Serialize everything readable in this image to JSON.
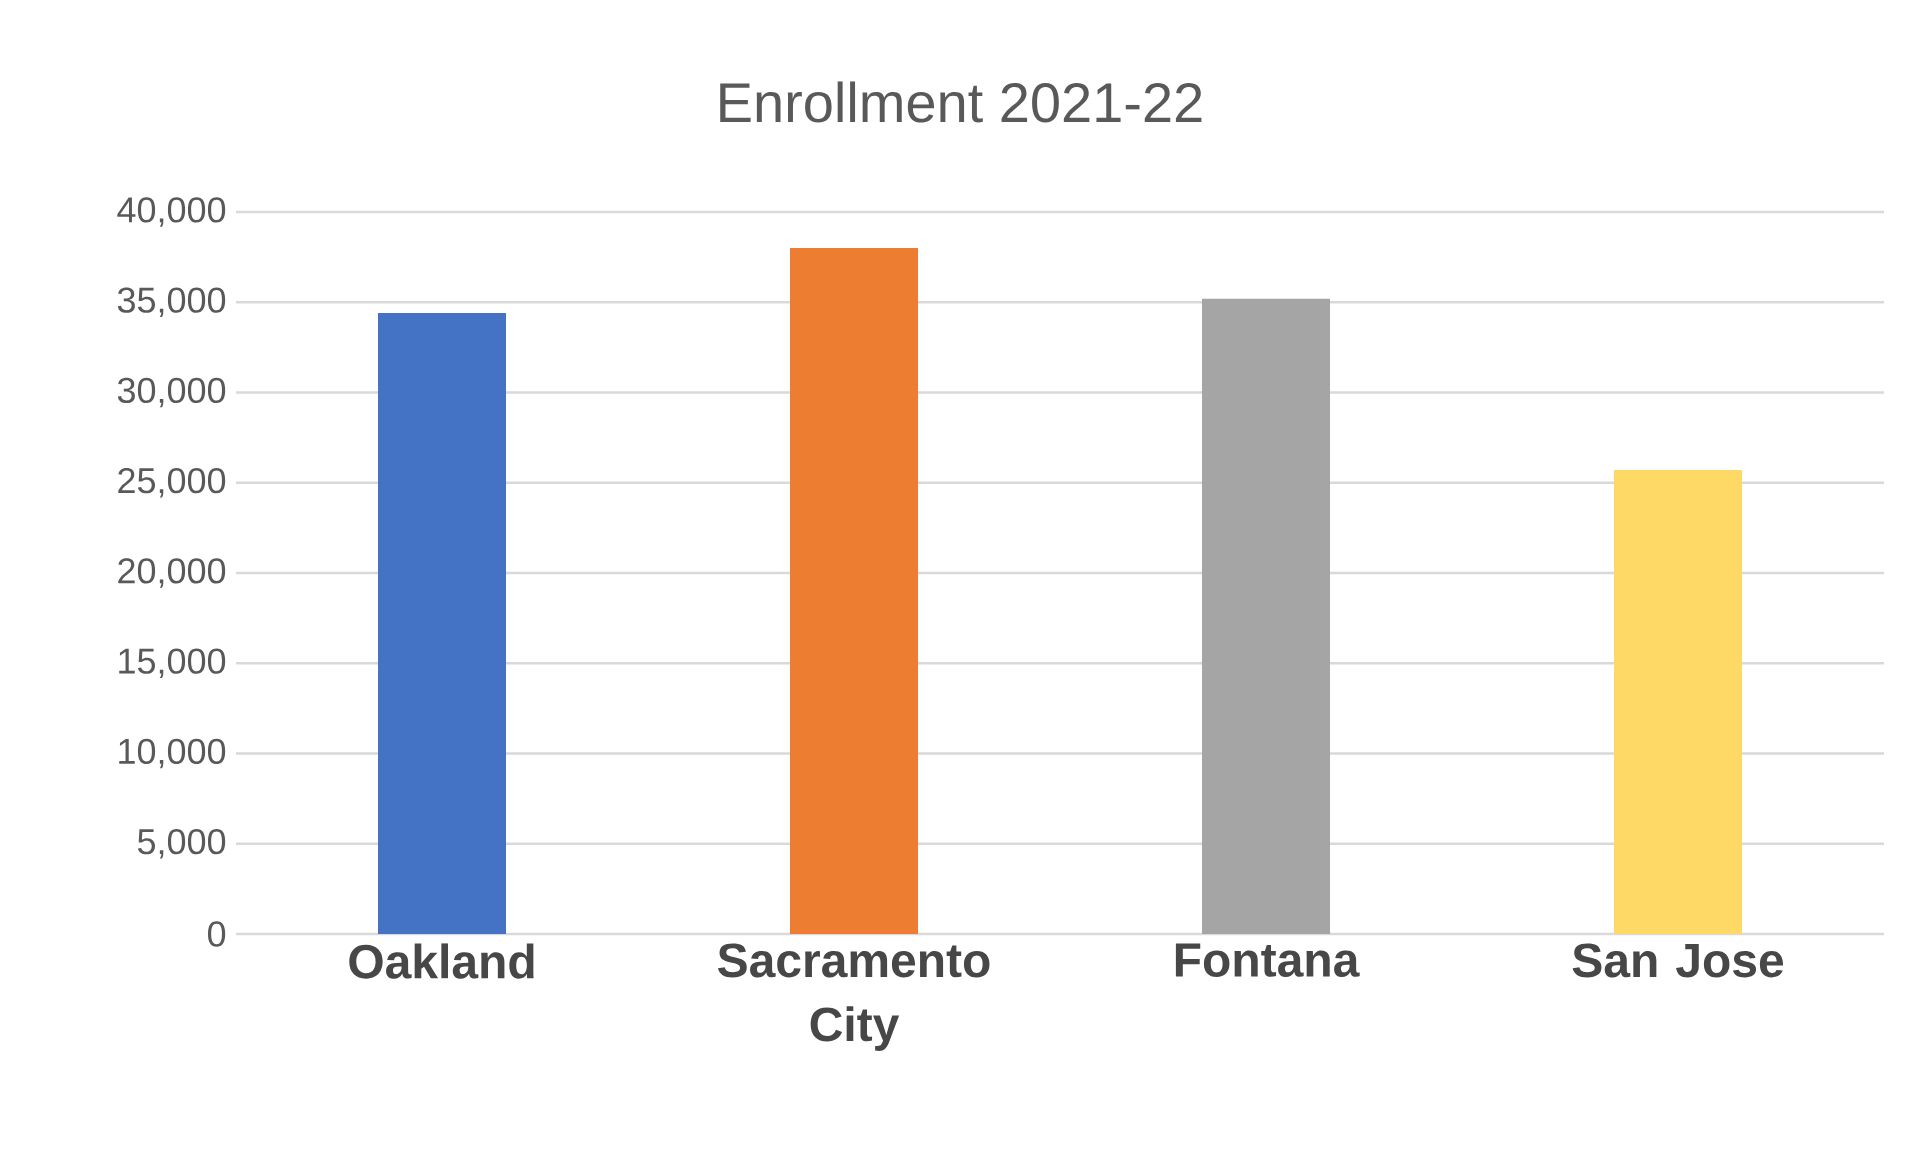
{
  "chart_data": {
    "type": "bar",
    "title": "Enrollment  2021-22",
    "categories": [
      "Oakland",
      "Sacramento City",
      "Fontana",
      "San Jose"
    ],
    "values": [
      34400,
      38000,
      35200,
      25700
    ],
    "colors": [
      "#4472c4",
      "#ed7d31",
      "#a5a5a5",
      "#ffd966"
    ],
    "ylim": [
      0,
      40000
    ],
    "yticks": [
      {
        "value": 0,
        "label": "0"
      },
      {
        "value": 5000,
        "label": "5,000"
      },
      {
        "value": 10000,
        "label": "10,000"
      },
      {
        "value": 15000,
        "label": "15,000"
      },
      {
        "value": 20000,
        "label": "20,000"
      },
      {
        "value": 25000,
        "label": "25,000"
      },
      {
        "value": 30000,
        "label": "30,000"
      },
      {
        "value": 35000,
        "label": "35,000"
      },
      {
        "value": 40000,
        "label": "40,000"
      }
    ],
    "grid": "y"
  }
}
